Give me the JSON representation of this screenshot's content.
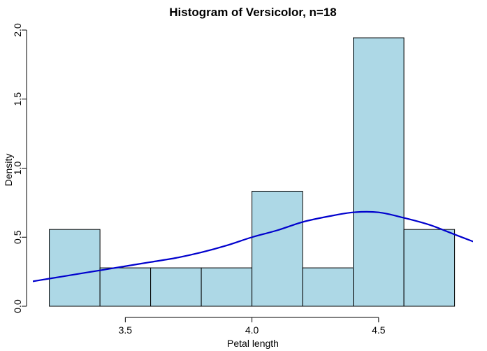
{
  "chart_data": {
    "type": "bar",
    "subtype": "histogram",
    "title": "Histogram of Versicolor, n=18",
    "xlabel": "Petal length",
    "ylabel": "Density",
    "xlim": [
      3.2,
      4.8
    ],
    "ylim": [
      0,
      2.0
    ],
    "x_ticks": [
      3.5,
      4.0,
      4.5
    ],
    "x_tick_labels": [
      "3.5",
      "4.0",
      "4.5"
    ],
    "y_ticks": [
      0,
      0.5,
      1.0,
      1.5,
      2.0
    ],
    "y_tick_labels": [
      "0.0",
      "0.5",
      "1.0",
      "1.5",
      "2.0"
    ],
    "bins": [
      {
        "x0": 3.2,
        "x1": 3.4,
        "density": 0.556
      },
      {
        "x0": 3.4,
        "x1": 3.6,
        "density": 0.278
      },
      {
        "x0": 3.6,
        "x1": 3.8,
        "density": 0.278
      },
      {
        "x0": 3.8,
        "x1": 4.0,
        "density": 0.278
      },
      {
        "x0": 4.0,
        "x1": 4.2,
        "density": 0.833
      },
      {
        "x0": 4.2,
        "x1": 4.4,
        "density": 0.278
      },
      {
        "x0": 4.4,
        "x1": 4.6,
        "density": 1.944
      },
      {
        "x0": 4.6,
        "x1": 4.8,
        "density": 0.556
      }
    ],
    "density_curve": {
      "x": [
        3.1,
        3.2,
        3.3,
        3.4,
        3.5,
        3.6,
        3.7,
        3.8,
        3.9,
        4.0,
        4.1,
        4.2,
        4.3,
        4.4,
        4.5,
        4.6,
        4.7,
        4.8,
        4.9
      ],
      "y": [
        0.17,
        0.2,
        0.23,
        0.26,
        0.29,
        0.32,
        0.35,
        0.39,
        0.44,
        0.5,
        0.55,
        0.61,
        0.65,
        0.68,
        0.68,
        0.64,
        0.59,
        0.52,
        0.45
      ]
    },
    "grid": false,
    "legend": "none",
    "colors": {
      "bar_fill": "#add8e6",
      "bar_stroke": "#000000",
      "curve": "#0000cd",
      "axis": "#000000"
    }
  }
}
